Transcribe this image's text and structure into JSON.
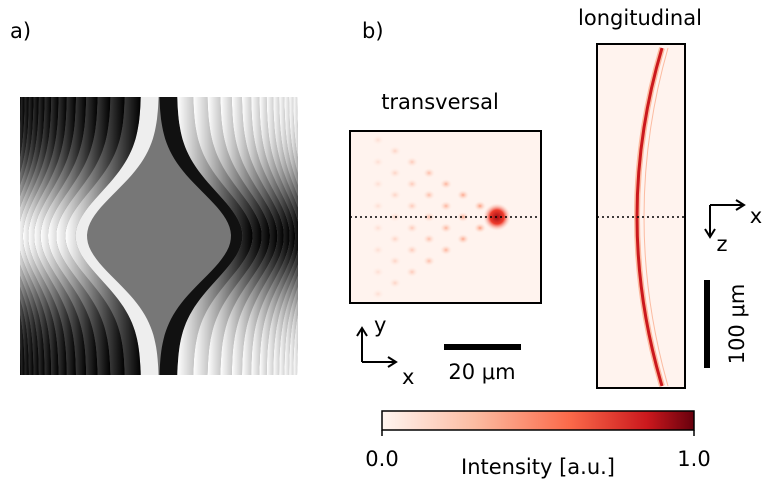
{
  "panel_a": {
    "label": "a)"
  },
  "panel_b": {
    "label": "b)"
  },
  "transversal": {
    "title": "transversal",
    "axis_y": "y",
    "axis_x": "x",
    "scale_bar": "20 μm"
  },
  "longitudinal": {
    "title": "longitudinal",
    "axis_x": "x",
    "axis_z": "z",
    "scale_bar": "100 μm"
  },
  "colorbar": {
    "label": "Intensity [a.u.]",
    "ticks": [
      {
        "value": 0,
        "label": "0.0"
      },
      {
        "value": 1,
        "label": "1.0"
      }
    ]
  }
}
